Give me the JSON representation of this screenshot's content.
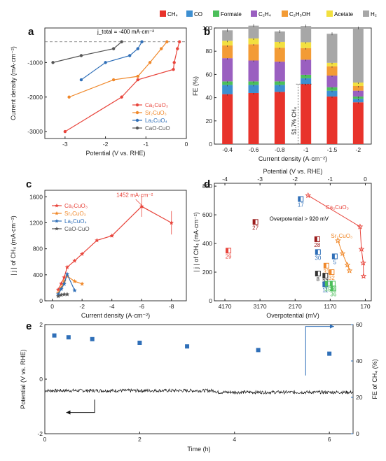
{
  "chart_data": [
    {
      "panel": "a",
      "type": "line",
      "xlabel": "Potential (V vs. RHE)",
      "ylabel": "Current density (mA·cm⁻²)",
      "xlim": [
        -3.5,
        0
      ],
      "ylim": [
        -3200,
        0
      ],
      "xticks": [
        -3,
        -2,
        -1,
        0
      ],
      "yticks": [
        -3000,
        -2000,
        -1000
      ],
      "xtick_labels": [
        "-3",
        "-2",
        "-1",
        "0"
      ],
      "ytick_labels": [
        "-3000",
        "-2000",
        "-1000"
      ],
      "annotation": "j_total = -400 mA·cm⁻²",
      "reference_line": -400,
      "legend_position": "bottom-right",
      "series": [
        {
          "name": "Ca₂CuO₃",
          "color": "#e8453c",
          "marker": "circle",
          "points": [
            [
              -0.17,
              -400
            ],
            [
              -0.22,
              -600
            ],
            [
              -0.3,
              -1000
            ],
            [
              -0.32,
              -1200
            ],
            [
              -1.2,
              -1500
            ],
            [
              -1.6,
              -2000
            ],
            [
              -3.0,
              -3000
            ]
          ]
        },
        {
          "name": "Sr₂CuO₃",
          "color": "#f0882a",
          "marker": "circle",
          "points": [
            [
              -0.48,
              -400
            ],
            [
              -0.62,
              -600
            ],
            [
              -0.9,
              -1000
            ],
            [
              -1.2,
              -1400
            ],
            [
              -1.8,
              -1500
            ],
            [
              -2.9,
              -2000
            ]
          ]
        },
        {
          "name": "La₂CuO₄",
          "color": "#2f6fb8",
          "marker": "circle",
          "points": [
            [
              -1.1,
              -400
            ],
            [
              -1.2,
              -600
            ],
            [
              -1.4,
              -800
            ],
            [
              -2.0,
              -1000
            ],
            [
              -2.6,
              -1500
            ]
          ]
        },
        {
          "name": "CaO-CuO",
          "color": "#555555",
          "marker": "circle",
          "points": [
            [
              -1.6,
              -400
            ],
            [
              -1.8,
              -600
            ],
            [
              -2.6,
              -800
            ],
            [
              -3.3,
              -1000
            ]
          ]
        }
      ]
    },
    {
      "panel": "b",
      "type": "bar",
      "stacked": true,
      "xlabel": "Current density (A·cm⁻²)",
      "ylabel": "FE (%)",
      "ylim": [
        0,
        100
      ],
      "yticks": [
        0,
        20,
        40,
        60,
        80,
        100
      ],
      "ytick_labels": [
        "0",
        "20",
        "40",
        "60",
        "80",
        "100"
      ],
      "categories": [
        "-0.4",
        "-0.6",
        "-0.8",
        "-1",
        "-1.5",
        "-2"
      ],
      "annotation": "51.7% CH₄",
      "legend_position": "top",
      "series": [
        {
          "name": "CH₄",
          "color": "#e8332b",
          "values": [
            43,
            44,
            45,
            51.7,
            41,
            36
          ]
        },
        {
          "name": "CO",
          "color": "#3d8fd1",
          "values": [
            8,
            7,
            6,
            5,
            5,
            3
          ]
        },
        {
          "name": "Formate",
          "color": "#4cbf5a",
          "values": [
            3,
            3,
            3,
            3,
            3,
            2
          ]
        },
        {
          "name": "C₂H₄",
          "color": "#9a5fc0",
          "values": [
            20,
            18,
            17,
            13,
            10,
            5
          ]
        },
        {
          "name": "C₂H₅OH",
          "color": "#f39b35",
          "values": [
            11,
            14,
            12,
            10,
            8,
            4
          ]
        },
        {
          "name": "Acetate",
          "color": "#f2e040",
          "values": [
            4,
            5,
            5,
            5,
            3,
            3
          ]
        },
        {
          "name": "H₂",
          "color": "#a7a7a7",
          "values": [
            9,
            11,
            9,
            14,
            25,
            47
          ]
        }
      ]
    },
    {
      "panel": "c",
      "type": "line",
      "xlabel": "Current density (A·cm⁻²)",
      "ylabel": "| j | of CH₄ (mA·cm⁻²)",
      "xlim": [
        0.5,
        -9
      ],
      "ylim": [
        0,
        1700
      ],
      "xticks": [
        0,
        -2,
        -4,
        -6,
        -8
      ],
      "yticks": [
        0,
        400,
        800,
        1200,
        1600
      ],
      "xtick_labels": [
        "0",
        "-2",
        "-4",
        "-6",
        "-8"
      ],
      "ytick_labels": [
        "0",
        "400",
        "800",
        "1200",
        "1600"
      ],
      "annotation": "1452 mA·cm⁻²",
      "legend_position": "top-left",
      "series": [
        {
          "name": "Ca₂CuO₃",
          "color": "#e8453c",
          "marker": "star",
          "points": [
            [
              -0.4,
              172
            ],
            [
              -0.6,
              264
            ],
            [
              -0.8,
              360
            ],
            [
              -1,
              517
            ],
            [
              -1.5,
              615
            ],
            [
              -2,
              720
            ],
            [
              -3,
              930
            ],
            [
              -4,
              1000
            ],
            [
              -6,
              1452
            ],
            [
              -8,
              1200
            ]
          ]
        },
        {
          "name": "Sr₂CuO₃",
          "color": "#f0882a",
          "marker": "star",
          "points": [
            [
              -0.4,
              120
            ],
            [
              -0.6,
              200
            ],
            [
              -0.8,
              300
            ],
            [
              -1,
              380
            ],
            [
              -1.5,
              300
            ],
            [
              -2,
              260
            ]
          ]
        },
        {
          "name": "La₂CuO₄",
          "color": "#2f6fb8",
          "marker": "star",
          "points": [
            [
              -0.4,
              100
            ],
            [
              -0.6,
              180
            ],
            [
              -0.8,
              260
            ],
            [
              -1,
              410
            ],
            [
              -1.5,
              160
            ]
          ]
        },
        {
          "name": "CaO-CuO",
          "color": "#555555",
          "marker": "star",
          "points": [
            [
              -0.4,
              70
            ],
            [
              -0.6,
              90
            ],
            [
              -0.8,
              100
            ],
            [
              -1,
              100
            ]
          ]
        }
      ]
    },
    {
      "panel": "d",
      "type": "scatter",
      "xlabel": "Overpotential (mV)",
      "ylabel": "| j | of CH₄ (mA·cm⁻²)",
      "top_xlabel": "Potential (V vs. RHE)",
      "xticks": [
        4170,
        3170,
        2170,
        1170,
        170
      ],
      "xtick_labels": [
        "4170",
        "3170",
        "2170",
        "1170",
        "170"
      ],
      "top_xticks": [
        -4,
        -3,
        -2,
        -1,
        0
      ],
      "top_xtick_labels": [
        "-4",
        "-3",
        "-2",
        "-1",
        "0"
      ],
      "yticks": [
        0,
        200,
        400,
        600,
        800
      ],
      "ytick_labels": [
        "0",
        "200",
        "400",
        "600",
        "800"
      ],
      "annotation": "Overpotential > 920 mV",
      "series_label": "Ca₂CuO₃",
      "series_label_2": "Sr₂CuO₃",
      "ca2cuo3": {
        "color": "#e8453c",
        "points": [
          [
            1800,
            735
          ],
          [
            320,
            517
          ],
          [
            280,
            360
          ],
          [
            230,
            264
          ],
          [
            220,
            172
          ]
        ]
      },
      "sr2cuo3": {
        "color": "#f0882a",
        "points": [
          [
            950,
            420
          ],
          [
            820,
            330
          ],
          [
            680,
            250
          ],
          [
            620,
            210
          ]
        ]
      },
      "refs": [
        {
          "label": "17",
          "color": "#2f6fb8",
          "x": 2010,
          "y": 710
        },
        {
          "label": "27",
          "color": "#9b1b1b",
          "x": 3300,
          "y": 550
        },
        {
          "label": "28",
          "color": "#9b1b1b",
          "x": 1540,
          "y": 430
        },
        {
          "label": "29",
          "color": "#e8453c",
          "x": 4070,
          "y": 350
        },
        {
          "label": "30",
          "color": "#2f6fb8",
          "x": 1520,
          "y": 340
        },
        {
          "label": "31",
          "color": "#f0882a",
          "x": 1280,
          "y": 245
        },
        {
          "label": "5",
          "color": "#2f6fb8",
          "x": 1040,
          "y": 310
        },
        {
          "label": "32",
          "color": "#f0882a",
          "x": 1130,
          "y": 200
        },
        {
          "label": "8",
          "color": "#333333",
          "x": 1520,
          "y": 190
        },
        {
          "label": "37",
          "color": "#333333",
          "x": 1310,
          "y": 175
        },
        {
          "label": "11",
          "color": "#2f6fb8",
          "x": 1310,
          "y": 115
        },
        {
          "label": "34",
          "color": "#4cbf5a",
          "x": 1100,
          "y": 120
        },
        {
          "label": "35",
          "color": "#4cbf5a",
          "x": 1240,
          "y": 120
        },
        {
          "label": "36",
          "color": "#4cbf5a",
          "x": 1080,
          "y": 85
        }
      ]
    },
    {
      "panel": "e",
      "type": "line",
      "xlabel": "Time (h)",
      "ylabel": "Potential (V vs. RHE)",
      "y2label": "FE of CH₄ (%)",
      "xlim": [
        0,
        6.5
      ],
      "ylim": [
        -2,
        2
      ],
      "y2lim": [
        0,
        60
      ],
      "xticks": [
        0,
        2,
        4,
        6
      ],
      "yticks": [
        -2,
        0,
        2
      ],
      "y2ticks": [
        0,
        20,
        40,
        60
      ],
      "xtick_labels": [
        "0",
        "2",
        "4",
        "6"
      ],
      "ytick_labels": [
        "-2",
        "0",
        "2"
      ],
      "y2tick_labels": [
        "0",
        "20",
        "40",
        "60"
      ],
      "potential_trace": {
        "color": "#111111",
        "level": -0.42,
        "noise": 0.06
      },
      "fe_series": {
        "color": "#2f6fb8",
        "points": [
          [
            0.2,
            54
          ],
          [
            0.5,
            53
          ],
          [
            1,
            52
          ],
          [
            2,
            50
          ],
          [
            3,
            48
          ],
          [
            4.5,
            46
          ],
          [
            6,
            44
          ]
        ]
      }
    }
  ],
  "panel_letters": {
    "a": "a",
    "b": "b",
    "c": "c",
    "d": "d",
    "e": "e"
  }
}
